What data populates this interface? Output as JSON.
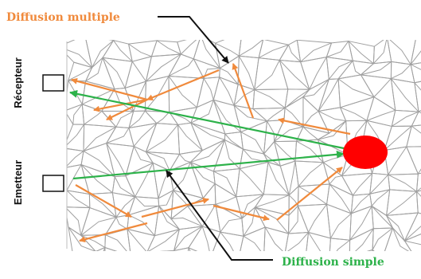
{
  "labels": {
    "diffusion_multiple": "Diffusion multiple",
    "diffusion_simple": "Diffusion simple",
    "recepteur": "Récepteur",
    "emetteur": "Emetteur"
  },
  "colors": {
    "orange": "#F08A3C",
    "green": "#2DB24A",
    "red": "#FF0000",
    "grain": "#9a9a9a",
    "black": "#111111"
  }
}
